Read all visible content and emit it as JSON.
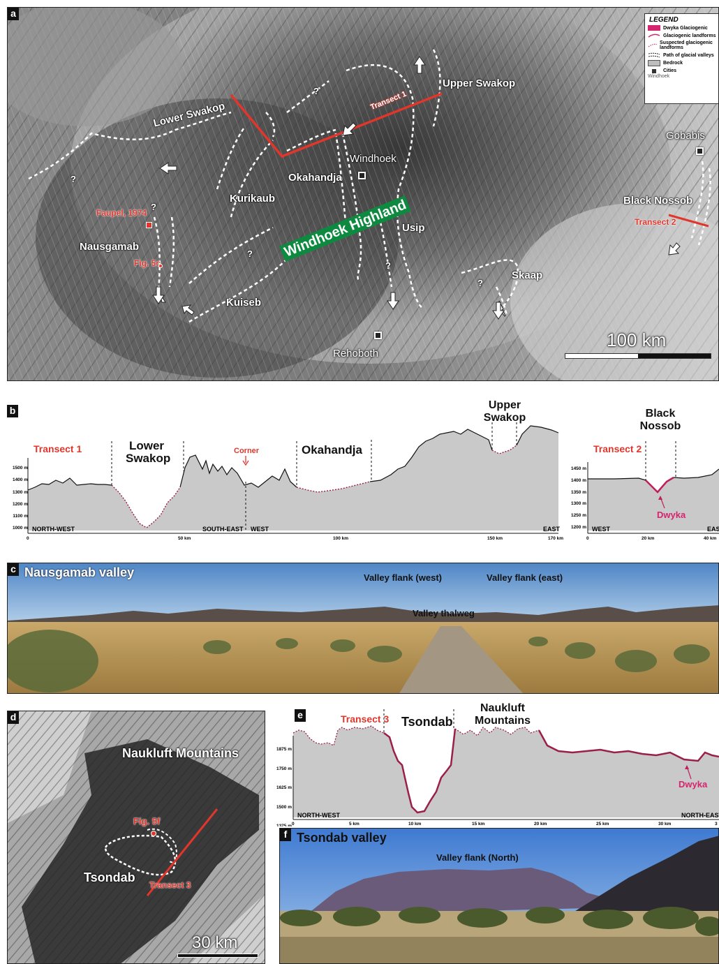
{
  "panel_a": {
    "letter": "a",
    "legend": {
      "title": "LEGEND",
      "items": [
        {
          "label": "Dwyka Glaciogenic",
          "symbol": "pink-fill-arrow"
        },
        {
          "label": "Glaciogenic landforms",
          "symbol": "pink-line"
        },
        {
          "label": "Suspected glaciogenic landforms",
          "symbol": "pink-dotted-line"
        },
        {
          "label": "Path of glacial valleys",
          "symbol": "black-dashed-double"
        },
        {
          "label": "Bedrock",
          "symbol": "grey-box"
        },
        {
          "label": "Cities",
          "sublabel": "Windhoek",
          "symbol": "black-square"
        }
      ]
    },
    "labels": {
      "upper_swakop": "Upper Swakop",
      "lower_swakop": "Lower Swakop",
      "transect1": "Transect 1",
      "okahandja": "Okahandja",
      "kurikaub": "Kurikaub",
      "windhoek_highland": "Windhoek Highland",
      "usip": "Usip",
      "faupel": "Faupel, 1974",
      "nausgamab": "Nausgamab",
      "fig5c": "Fig. 5c",
      "kuiseb": "Kuiseb",
      "skaap": "Skaap",
      "black_nossob": "Black Nossob",
      "transect2": "Transect 2",
      "question": "?"
    },
    "cities": {
      "windhoek": "Windhoek",
      "gobabis": "Gobabis",
      "rehoboth": "Rehoboth"
    },
    "scale": "100 km"
  },
  "panel_b": {
    "letter": "b",
    "transect1": {
      "title": "Transect 1",
      "y_ticks": [
        "1500 m",
        "1400 m",
        "1300 m",
        "1200 m",
        "1100 m",
        "1000 m"
      ],
      "x_ticks": [
        "0",
        "50 km",
        "100 km",
        "150 km",
        "170 km"
      ],
      "directions": [
        "NORTH-WEST",
        "SOUTH-EAST",
        "WEST",
        "EAST"
      ],
      "segments": [
        "Lower Swakop",
        "Corner",
        "Okahandja",
        "Upper Swakop"
      ]
    },
    "transect2": {
      "title": "Transect 2",
      "y_ticks": [
        "1450 m",
        "1400 m",
        "1350 m",
        "1300 m",
        "1250 m",
        "1200 m"
      ],
      "x_ticks": [
        "0",
        "20 km",
        "40 km"
      ],
      "directions": [
        "WEST",
        "EAST"
      ],
      "segments": [
        "Black Nossob"
      ],
      "annotation": "Dwyka"
    }
  },
  "panel_c": {
    "letter": "c",
    "title": "Nausgamab valley",
    "labels": [
      "Valley flank (west)",
      "Valley flank (east)",
      "Valley thalweg"
    ]
  },
  "panel_d": {
    "letter": "d",
    "labels": {
      "naukluft": "Naukluft Mountains",
      "fig5f": "Fig. 5f",
      "tsondab": "Tsondab",
      "transect3": "Transect 3"
    },
    "scale": "30 km"
  },
  "panel_e": {
    "letter": "e",
    "title": "Transect 3",
    "segments": [
      "Tsondab",
      "Naukluft Mountains"
    ],
    "y_ticks": [
      "1875 m",
      "1750 m",
      "1625 m",
      "1500 m",
      "1375 m"
    ],
    "x_ticks": [
      "0",
      "5 km",
      "10 km",
      "15 km",
      "20 km",
      "25 km",
      "30 km",
      "3"
    ],
    "directions": [
      "NORTH-WEST",
      "NORTH-EAST"
    ],
    "annotation": "Dwyka"
  },
  "panel_f": {
    "letter": "f",
    "title": "Tsondab valley",
    "labels": [
      "Valley flank (North)"
    ]
  },
  "colors": {
    "red": "#e0362c",
    "magenta": "#d6246e",
    "profile_fill": "#c8c8c8",
    "dwyka_line": "#9a1f4a"
  }
}
